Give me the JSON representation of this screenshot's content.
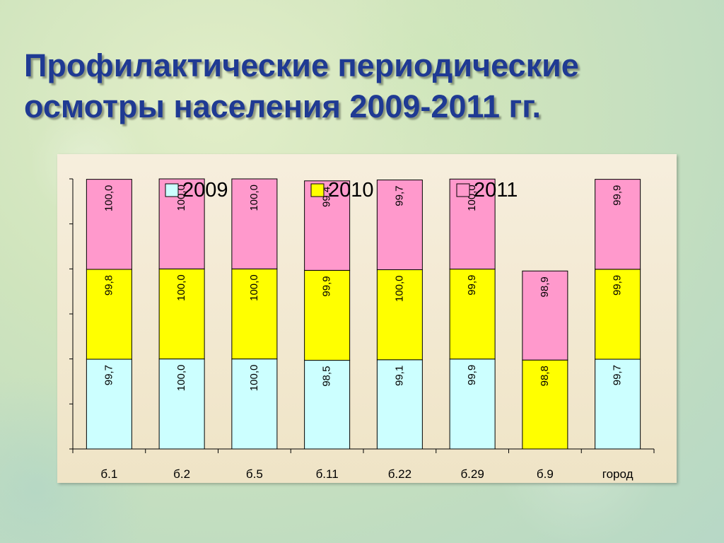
{
  "title": "Профилактические периодические осмотры населения 2009-2011 гг.",
  "chart_data": {
    "type": "bar",
    "stacked": true,
    "categories": [
      "б.1",
      "б.2",
      "б.5",
      "б.11",
      "б.22",
      "б.29",
      "б.9",
      "город"
    ],
    "series": [
      {
        "name": "2009",
        "color": "#ccffff",
        "values": [
          99.7,
          100.0,
          100.0,
          98.5,
          99.1,
          99.9,
          null,
          99.7
        ],
        "labels": [
          "99,7",
          "100,0",
          "100,0",
          "98,5",
          "99,1",
          "99,9",
          "",
          "99,7"
        ]
      },
      {
        "name": "2010",
        "color": "#ffff00",
        "values": [
          99.8,
          100.0,
          100.0,
          99.9,
          100.0,
          99.9,
          98.8,
          99.9
        ],
        "labels": [
          "99,8",
          "100,0",
          "100,0",
          "99,9",
          "100,0",
          "99,9",
          "98,8",
          "99,9"
        ]
      },
      {
        "name": "2011",
        "color": "#ff99cc",
        "values": [
          100.0,
          100.0,
          100.0,
          99.4,
          99.7,
          100.0,
          98.9,
          99.9
        ],
        "labels": [
          "100,0",
          "100,0",
          "100,0",
          "99,4",
          "99,7",
          "100,0",
          "98,9",
          "99,9"
        ]
      }
    ],
    "ylim": [
      0,
      300
    ],
    "legend_position": "top",
    "grid": false
  }
}
